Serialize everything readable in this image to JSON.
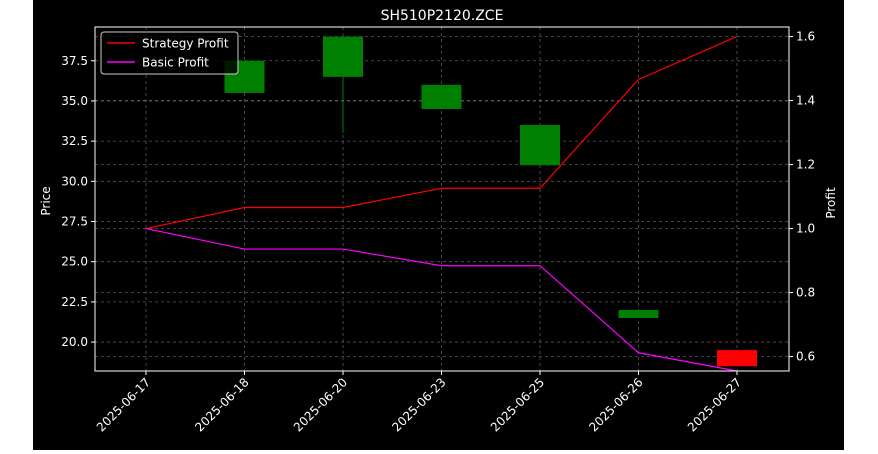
{
  "chart_data": {
    "type": "candlestick",
    "title": "SH510P2120.ZCE",
    "xlabel": "",
    "ylabel_left": "Price",
    "ylabel_right": "Profit",
    "categories": [
      "2025-06-17",
      "2025-06-18",
      "2025-06-20",
      "2025-06-23",
      "2025-06-25",
      "2025-06-26",
      "2025-06-27"
    ],
    "ylim_left": [
      18.2,
      39.6
    ],
    "ylim_right": [
      0.555,
      1.63
    ],
    "yticks_left": [
      20.0,
      22.5,
      25.0,
      27.5,
      30.0,
      32.5,
      35.0,
      37.5
    ],
    "yticks_right": [
      0.6,
      0.8,
      1.0,
      1.2,
      1.4,
      1.6
    ],
    "grid": true,
    "legend_position": "top-left",
    "candles": [
      {
        "date": "2025-06-18",
        "open": 35.5,
        "close": 37.5,
        "high": 37.5,
        "low": 35.5,
        "color": "#008000"
      },
      {
        "date": "2025-06-20",
        "open": 36.5,
        "close": 39.0,
        "high": 39.0,
        "low": 33.0,
        "color": "#008000"
      },
      {
        "date": "2025-06-23",
        "open": 34.5,
        "close": 36.0,
        "high": 36.0,
        "low": 34.5,
        "color": "#008000"
      },
      {
        "date": "2025-06-25",
        "open": 31.0,
        "close": 33.5,
        "high": 33.5,
        "low": 31.0,
        "color": "#008000"
      },
      {
        "date": "2025-06-26",
        "open": 21.5,
        "close": 22.0,
        "high": 22.0,
        "low": 21.5,
        "color": "#008000"
      },
      {
        "date": "2025-06-27",
        "open": 19.5,
        "close": 18.5,
        "high": 19.5,
        "low": 18.5,
        "color": "#ff0000"
      }
    ],
    "series": [
      {
        "name": "Strategy Profit",
        "color": "#ff0000",
        "axis": "right",
        "values": [
          1.0,
          1.066,
          1.066,
          1.126,
          1.126,
          1.466,
          1.6
        ]
      },
      {
        "name": "Basic Profit",
        "color": "#ff00ff",
        "axis": "right",
        "values": [
          1.0,
          0.936,
          0.936,
          0.884,
          0.884,
          0.612,
          0.555
        ]
      }
    ]
  }
}
